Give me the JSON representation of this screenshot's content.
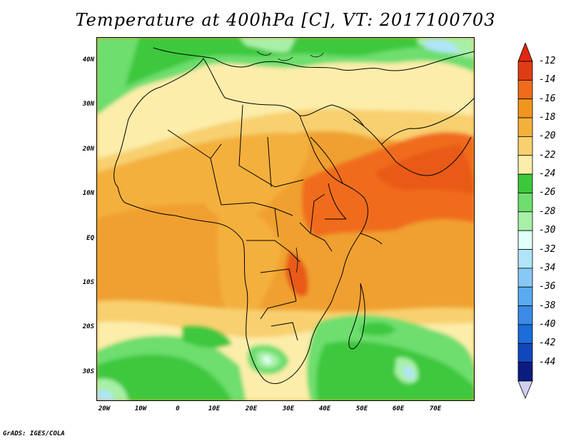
{
  "title": "Temperature at 400hPa [C], VT: 2017100703",
  "credit": "GrADS: IGES/COLA",
  "lat_labels": [
    "40N",
    "30N",
    "20N",
    "10N",
    "EQ",
    "10S",
    "20S",
    "30S"
  ],
  "lon_labels": [
    "20W",
    "10W",
    "0",
    "10E",
    "20E",
    "30E",
    "40E",
    "50E",
    "60E",
    "70E"
  ],
  "colorbar": {
    "levels": [
      "-12",
      "-14",
      "-16",
      "-18",
      "-20",
      "-22",
      "-24",
      "-26",
      "-28",
      "-30",
      "-32",
      "-34",
      "-36",
      "-38",
      "-40",
      "-42",
      "-44"
    ],
    "colors": [
      "#e03c14",
      "#f06c1c",
      "#f0961e",
      "#f4b03c",
      "#f8d070",
      "#fcedaa",
      "#3cc83c",
      "#6ede6e",
      "#a8f0a8",
      "#e0fff8",
      "#b0e4f8",
      "#88c8f4",
      "#5aaaf0",
      "#3a8ae8",
      "#1c6cdc",
      "#1048bc",
      "#0a1c80"
    ],
    "top_arrow_color": "#e02810",
    "bottom_arrow_color": "#d0d0f0"
  }
}
